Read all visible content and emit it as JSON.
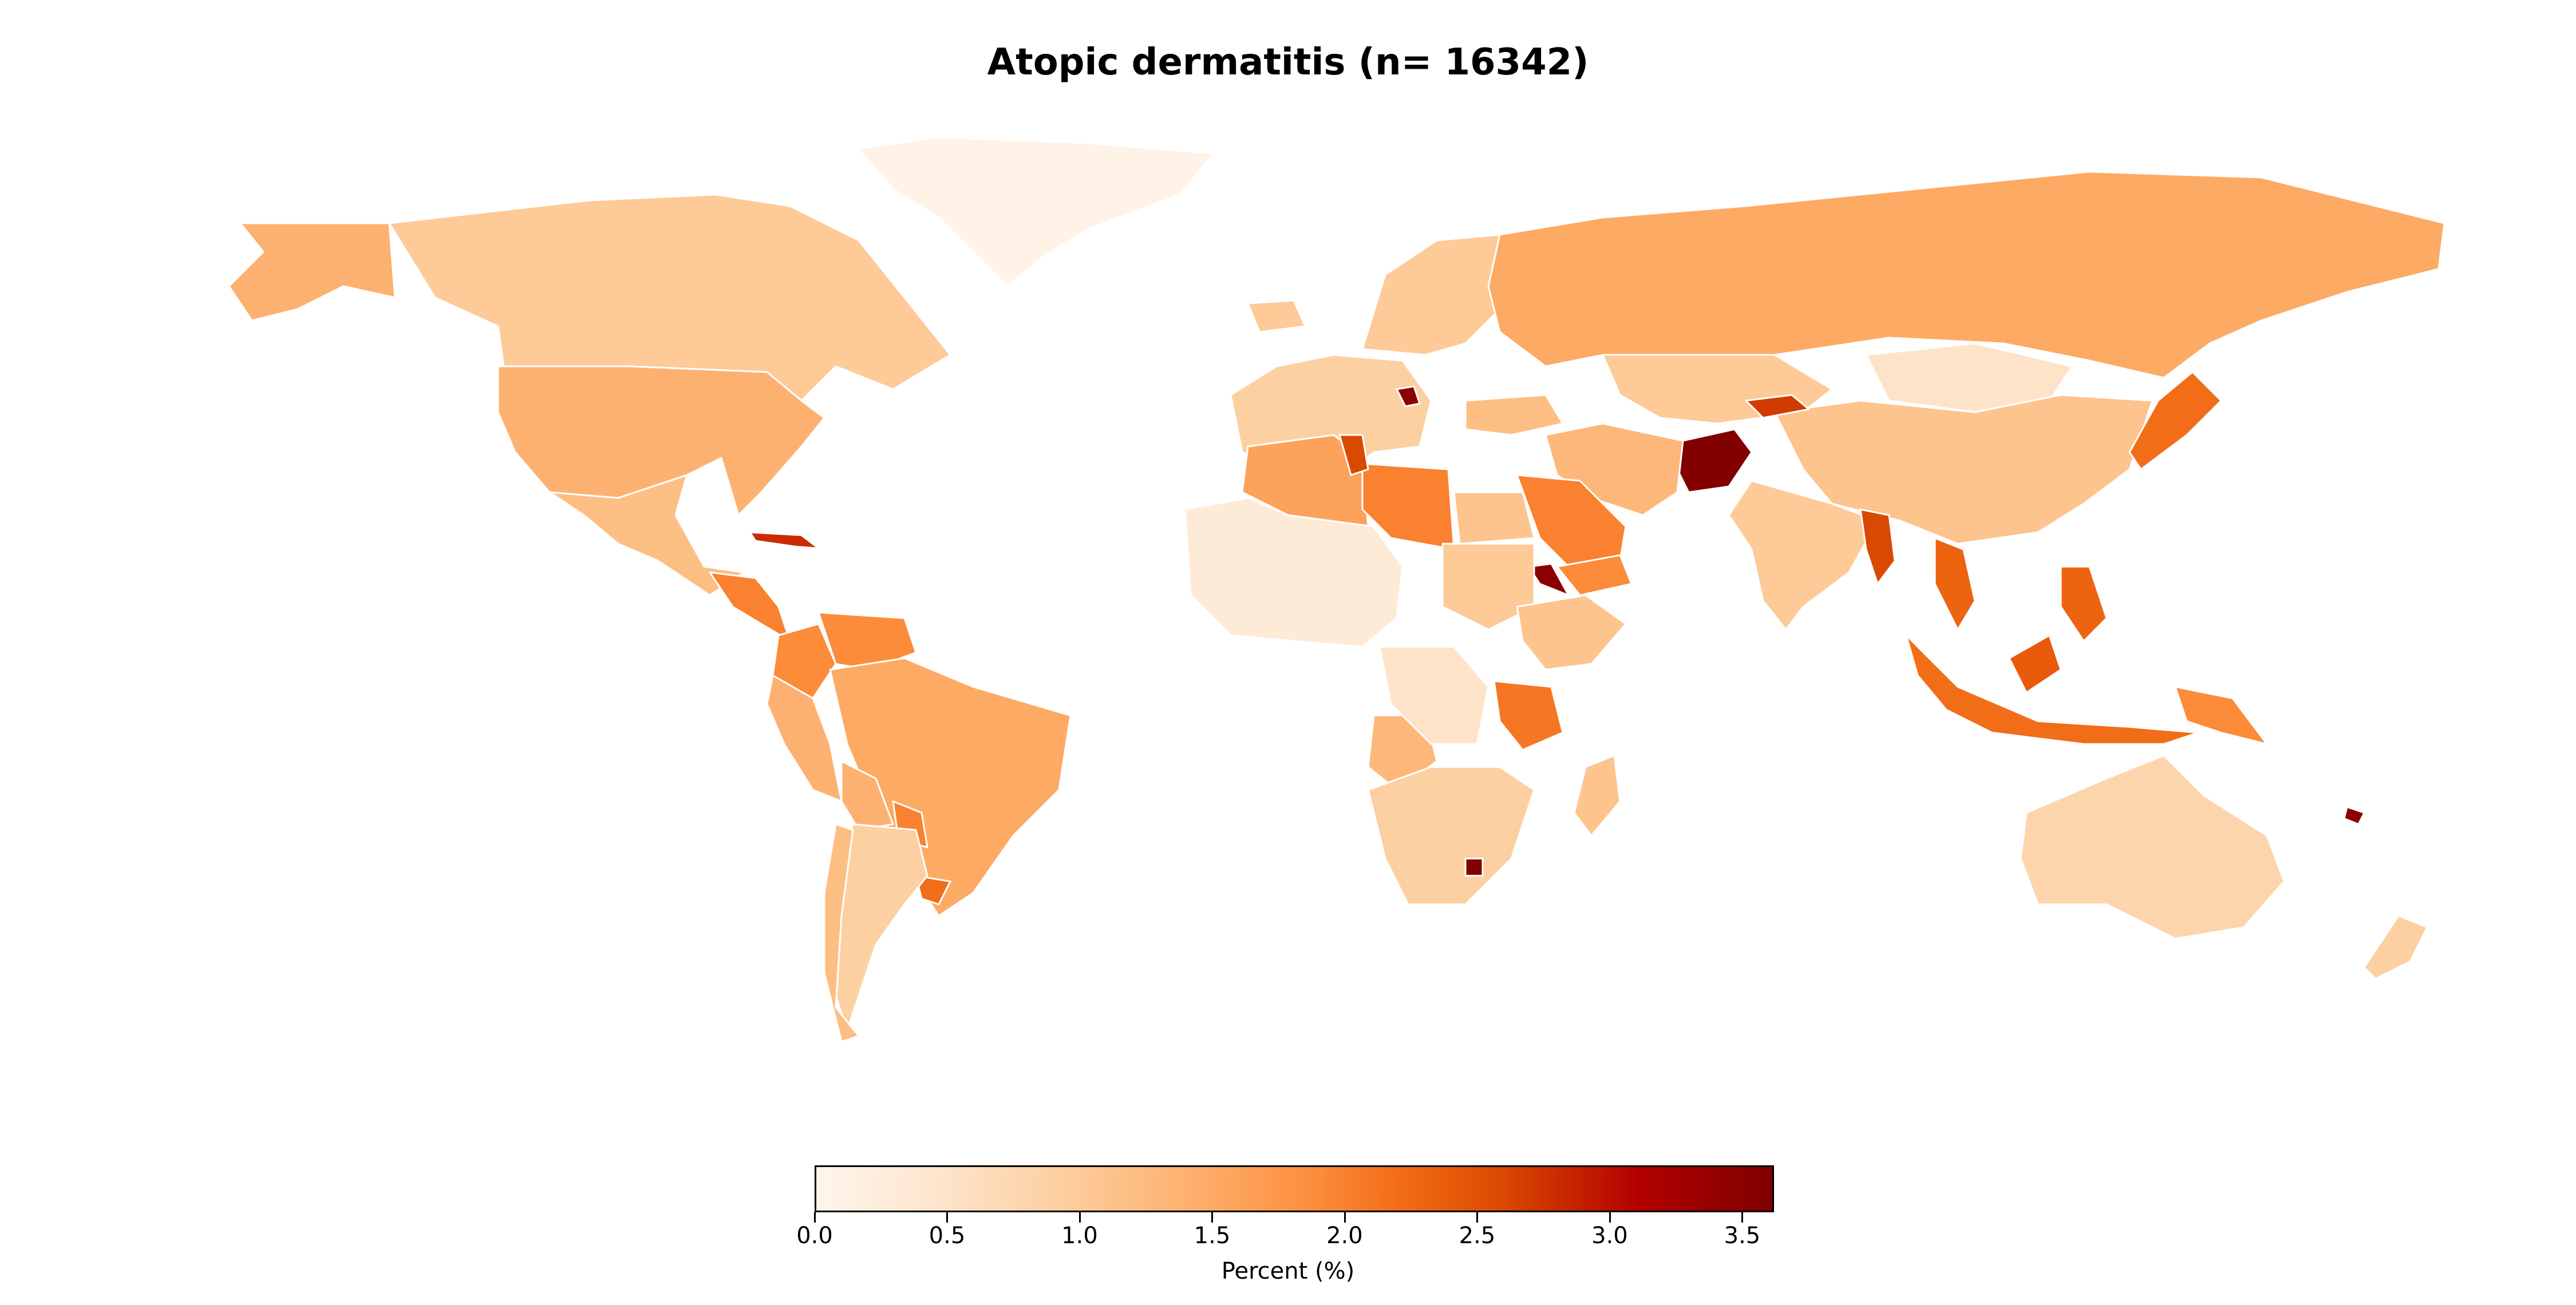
{
  "title": "Atopic dermatitis (n= 16342)",
  "colorbar": {
    "label": "Percent (%)",
    "min": 0.0,
    "max": 3.62,
    "ticks": [
      "0.0",
      "0.5",
      "1.0",
      "1.5",
      "2.0",
      "2.5",
      "3.0",
      "3.5"
    ],
    "colormap": "OrRd-like (white → orange → dark red)",
    "colors": [
      "#fff5eb",
      "#fdd0a2",
      "#fdae6b",
      "#f16913",
      "#b30000",
      "#7f0000"
    ]
  },
  "map_data": {
    "type": "choropleth",
    "projection": "Plate Carrée",
    "value_units": "Percent (%)",
    "regions": [
      {
        "name": "Greenland",
        "value": 0.05
      },
      {
        "name": "Canada",
        "value": 1.0
      },
      {
        "name": "Alaska (USA)",
        "value": 1.4
      },
      {
        "name": "United States",
        "value": 1.4
      },
      {
        "name": "Mexico",
        "value": 1.2
      },
      {
        "name": "Cuba",
        "value": 2.8
      },
      {
        "name": "Central America",
        "value": 2.0
      },
      {
        "name": "Colombia",
        "value": 1.9
      },
      {
        "name": "Venezuela",
        "value": 1.9
      },
      {
        "name": "Brazil",
        "value": 1.5
      },
      {
        "name": "Peru",
        "value": 1.4
      },
      {
        "name": "Bolivia",
        "value": 1.4
      },
      {
        "name": "Paraguay",
        "value": 2.0
      },
      {
        "name": "Uruguay",
        "value": 2.2
      },
      {
        "name": "Argentina",
        "value": 0.9
      },
      {
        "name": "Chile",
        "value": 1.2
      },
      {
        "name": "Iceland",
        "value": 1.0
      },
      {
        "name": "Western Europe",
        "value": 0.9
      },
      {
        "name": "Scandinavia",
        "value": 1.0
      },
      {
        "name": "Bosnia and Herzegovina",
        "value": 3.5
      },
      {
        "name": "Russia",
        "value": 1.5
      },
      {
        "name": "Kazakhstan",
        "value": 1.0
      },
      {
        "name": "Mongolia",
        "value": 0.5
      },
      {
        "name": "China",
        "value": 1.1
      },
      {
        "name": "Japan",
        "value": 2.2
      },
      {
        "name": "Kyrgyzstan",
        "value": 2.7
      },
      {
        "name": "Afghanistan",
        "value": 3.6
      },
      {
        "name": "Iran",
        "value": 1.3
      },
      {
        "name": "Turkey",
        "value": 1.2
      },
      {
        "name": "Saudi Arabia",
        "value": 2.0
      },
      {
        "name": "Yemen",
        "value": 1.9
      },
      {
        "name": "Eritrea",
        "value": 3.5
      },
      {
        "name": "India",
        "value": 1.0
      },
      {
        "name": "Myanmar",
        "value": 2.6
      },
      {
        "name": "Vietnam",
        "value": 2.3
      },
      {
        "name": "Philippines",
        "value": 2.3
      },
      {
        "name": "Indonesia",
        "value": 2.2
      },
      {
        "name": "Malaysia (Borneo)",
        "value": 2.4
      },
      {
        "name": "Papua New Guinea",
        "value": 1.9
      },
      {
        "name": "Australia",
        "value": 0.8
      },
      {
        "name": "New Zealand",
        "value": 0.9
      },
      {
        "name": "Algeria",
        "value": 1.6
      },
      {
        "name": "Libya",
        "value": 2.0
      },
      {
        "name": "Tunisia",
        "value": 2.6
      },
      {
        "name": "Egypt",
        "value": 1.1
      },
      {
        "name": "West Africa",
        "value": 0.3
      },
      {
        "name": "Sudan",
        "value": 1.0
      },
      {
        "name": "Ethiopia",
        "value": 1.1
      },
      {
        "name": "Tanzania",
        "value": 2.1
      },
      {
        "name": "Angola",
        "value": 1.3
      },
      {
        "name": "DR Congo",
        "value": 0.5
      },
      {
        "name": "Southern Africa",
        "value": 0.9
      },
      {
        "name": "Lesotho",
        "value": 3.6
      },
      {
        "name": "Madagascar",
        "value": 1.1
      },
      {
        "name": "Fiji",
        "value": 3.5
      }
    ]
  }
}
